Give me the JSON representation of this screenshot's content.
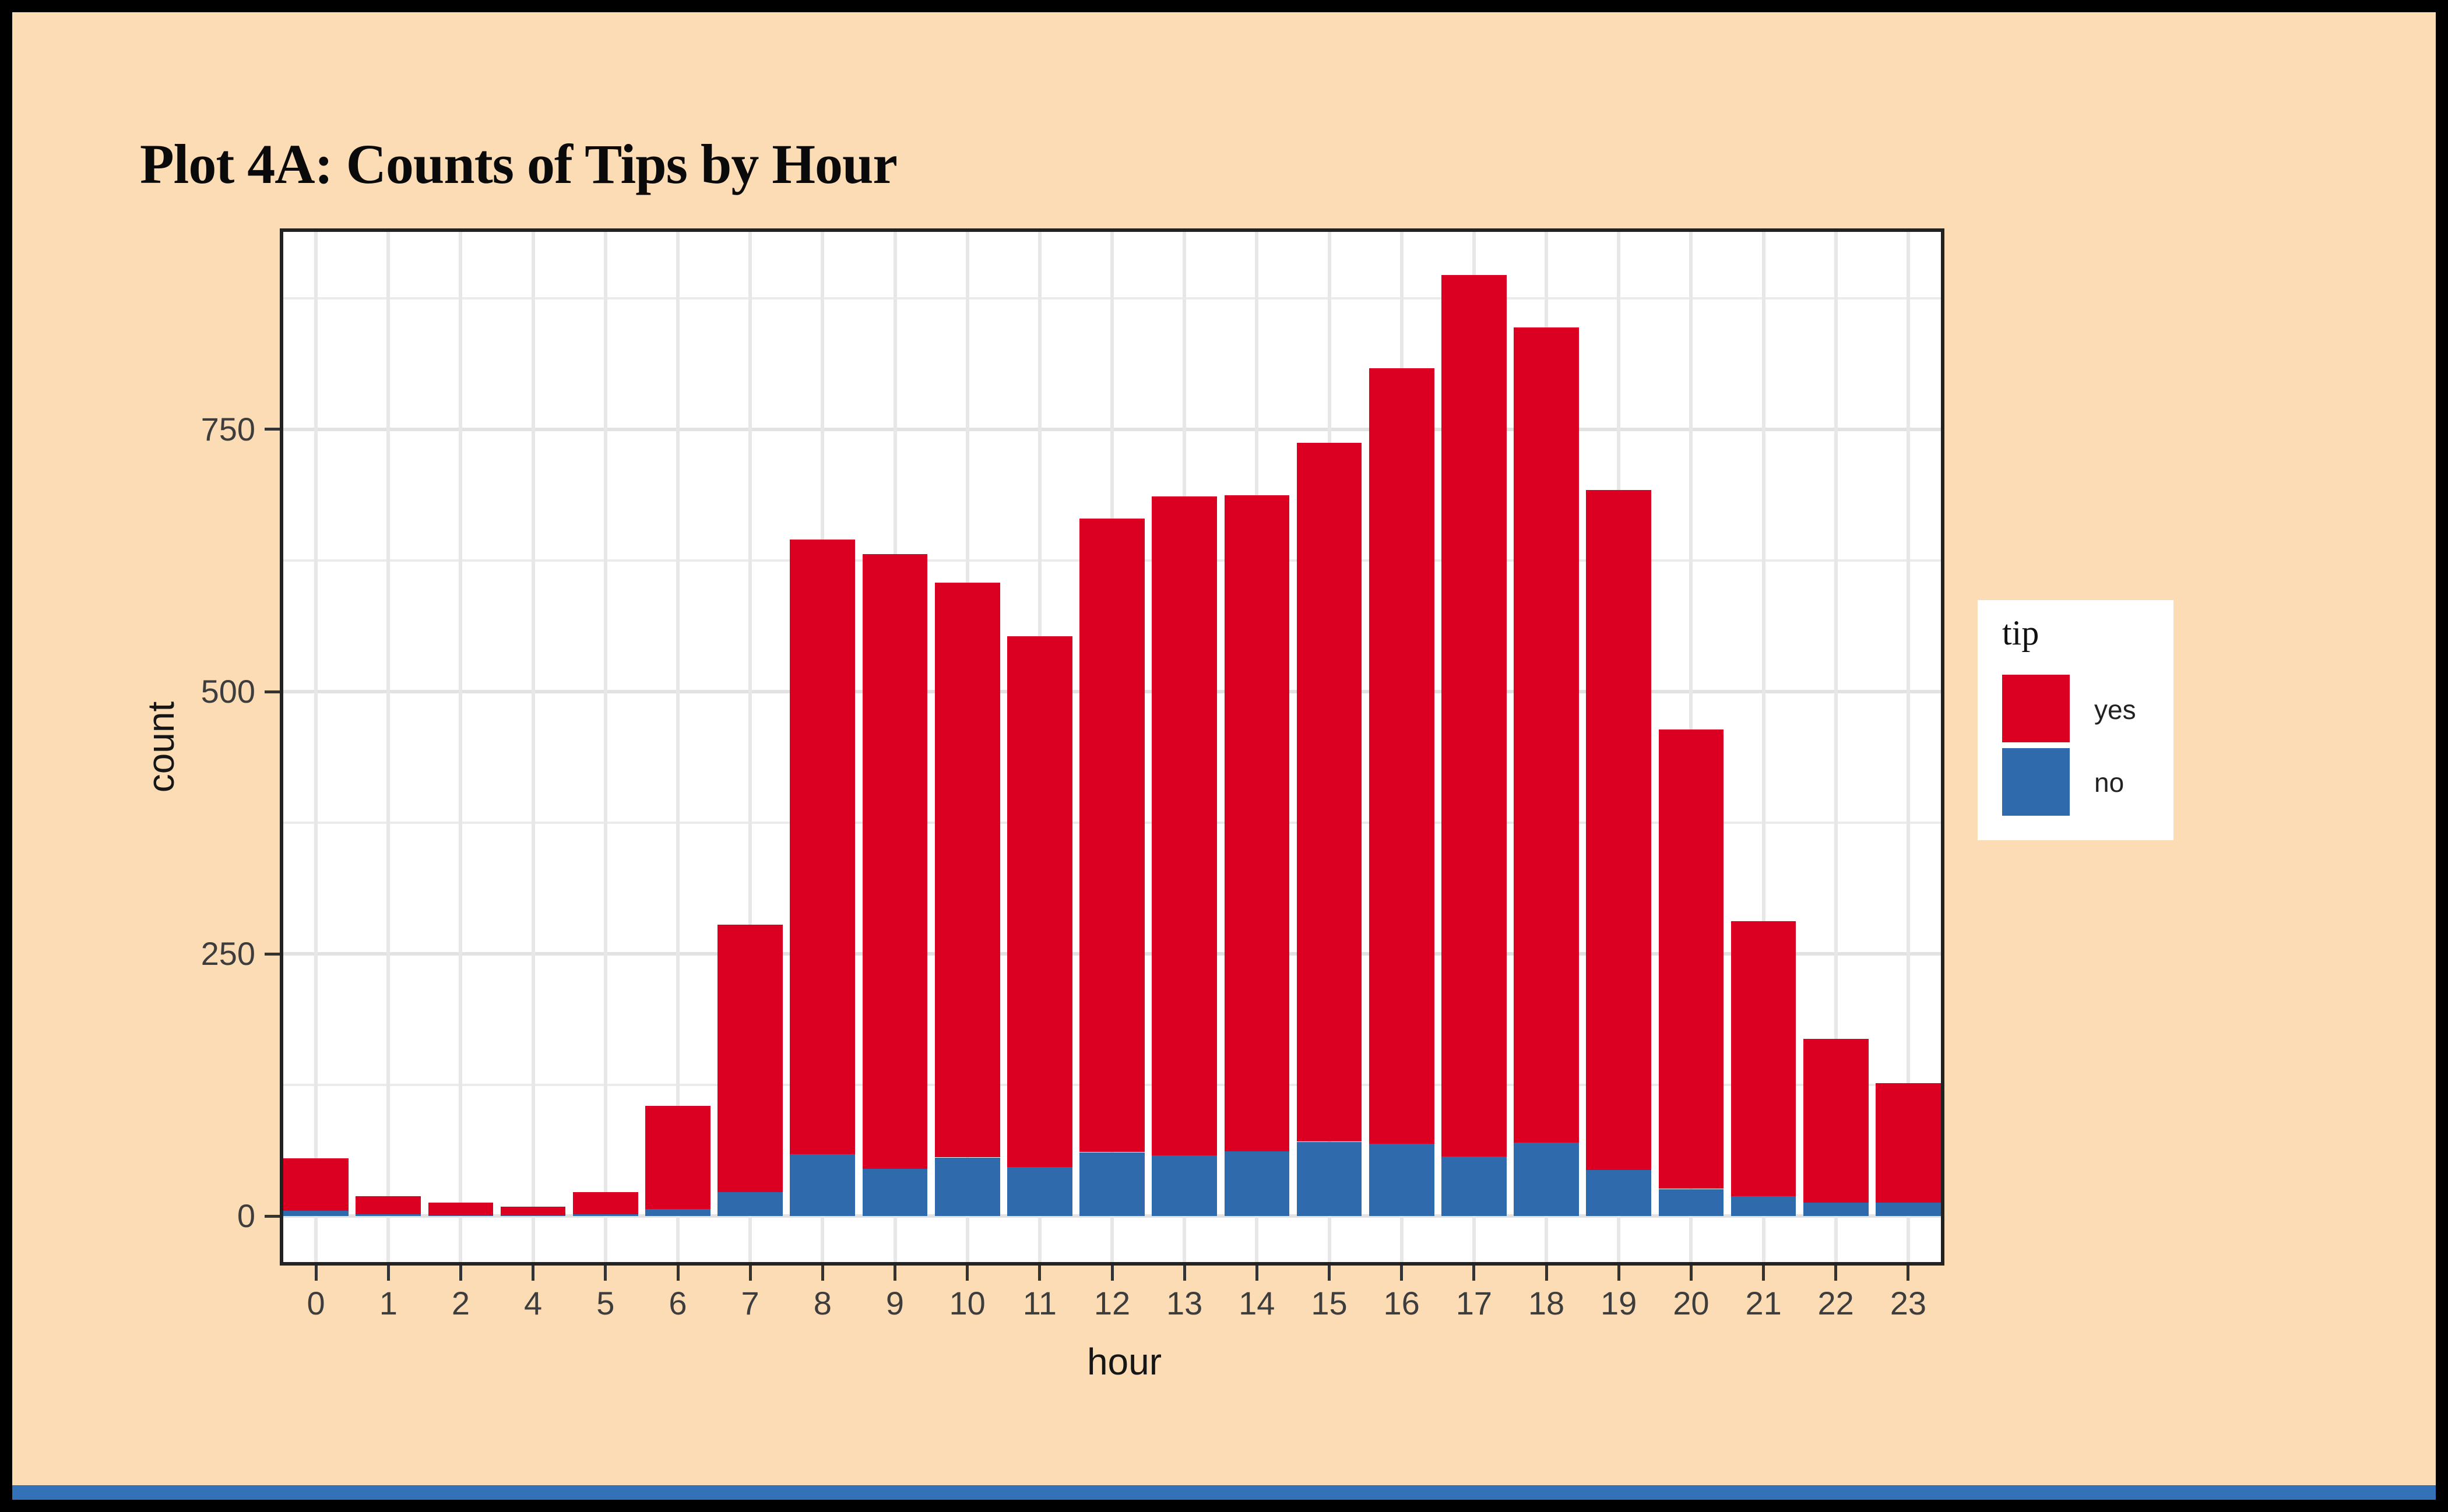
{
  "page": {
    "background_color": "#FCDCB5",
    "frame_color": "#000000",
    "bottom_strip_color": "#3372B8",
    "panel_background": "#FFFFFF",
    "panel_border_color": "#222222",
    "gridline_major_color": "#E2E2E2",
    "gridline_minor_color": "#EBEBEB"
  },
  "title": "Plot 4A: Counts of Tips by Hour",
  "axes": {
    "x_title": "hour",
    "y_title": "count"
  },
  "legend": {
    "title": "tip",
    "items": [
      {
        "label": "yes",
        "color": "#DB0021"
      },
      {
        "label": "no",
        "color": "#2E6AAC"
      }
    ]
  },
  "chart_data": {
    "type": "bar",
    "stacked": true,
    "title": "Plot 4A: Counts of Tips by Hour",
    "xlabel": "hour",
    "ylabel": "count",
    "categories": [
      "0",
      "1",
      "2",
      "4",
      "5",
      "6",
      "7",
      "8",
      "9",
      "10",
      "11",
      "12",
      "13",
      "14",
      "15",
      "16",
      "17",
      "18",
      "19",
      "20",
      "21",
      "22",
      "23"
    ],
    "series": [
      {
        "name": "no",
        "color": "#2E6AAC",
        "stack_position": "bottom",
        "values": [
          5,
          2,
          1,
          1,
          2,
          7,
          23,
          59,
          45,
          56,
          47,
          61,
          58,
          62,
          71,
          69,
          57,
          70,
          44,
          26,
          19,
          13,
          13
        ]
      },
      {
        "name": "yes",
        "color": "#DB0021",
        "stack_position": "top",
        "values": [
          50,
          17,
          12,
          8,
          21,
          98,
          255,
          586,
          586,
          548,
          506,
          604,
          628,
          625,
          666,
          739,
          840,
          777,
          648,
          438,
          262,
          156,
          114
        ]
      }
    ],
    "totals": [
      55,
      19,
      13,
      9,
      23,
      105,
      278,
      645,
      631,
      604,
      553,
      665,
      686,
      687,
      737,
      808,
      897,
      847,
      692,
      464,
      281,
      169,
      127
    ],
    "y_ticks": [
      0,
      250,
      500,
      750
    ],
    "y_minor_ticks": [
      125,
      375,
      625,
      875
    ],
    "y_domain": [
      -47,
      941.5
    ],
    "grid": "major and minor horizontal, major vertical at each hour",
    "legend_position": "right",
    "legend_title": "tip"
  }
}
